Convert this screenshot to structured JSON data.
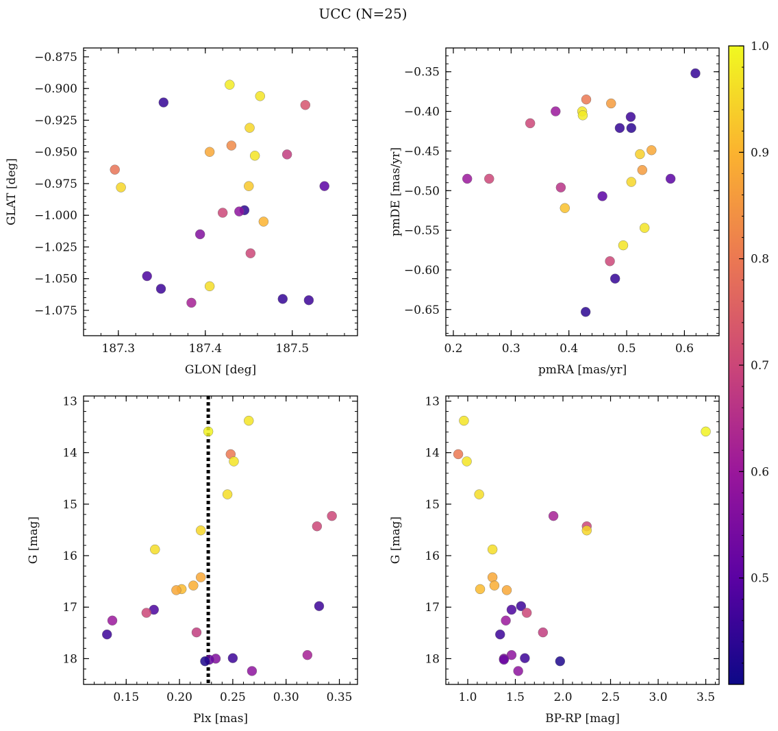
{
  "figure": {
    "title": "UCC (N=25)"
  },
  "colormap": {
    "name": "plasma",
    "stops": [
      "#0d0887",
      "#5b02a3",
      "#9a179b",
      "#cb4678",
      "#eb7852",
      "#fbb32f",
      "#f0f921"
    ],
    "range": [
      0.4,
      1.0
    ],
    "ticks": [
      0.5,
      0.6,
      0.7,
      0.8,
      0.9,
      1.0
    ],
    "tick_labels": [
      "0.5",
      "0.6",
      "0.7",
      "0.8",
      "0.9",
      "1.0"
    ]
  },
  "chart_data": [
    {
      "type": "scatter",
      "xlabel": "GLON [deg]",
      "ylabel": "GLAT [deg]",
      "xlim": [
        187.26,
        187.575
      ],
      "ylim": [
        -1.095,
        -0.868
      ],
      "y_inverted": false,
      "xticks": [
        187.3,
        187.4,
        187.5
      ],
      "xtick_labels": [
        "187.3",
        "187.4",
        "187.5"
      ],
      "yticks": [
        -0.875,
        -0.9,
        -0.925,
        -0.95,
        -0.975,
        -1.0,
        -1.025,
        -1.05,
        -1.075
      ],
      "ytick_labels": [
        "−0.875",
        "−0.900",
        "−0.925",
        "−0.950",
        "−0.975",
        "−1.000",
        "−1.025",
        "−1.050",
        "−1.075"
      ],
      "points": [
        {
          "x": 187.428,
          "y": -0.897,
          "c": 0.98
        },
        {
          "x": 187.463,
          "y": -0.906,
          "c": 0.97
        },
        {
          "x": 187.352,
          "y": -0.911,
          "c": 0.45
        },
        {
          "x": 187.515,
          "y": -0.913,
          "c": 0.73
        },
        {
          "x": 187.451,
          "y": -0.931,
          "c": 0.95
        },
        {
          "x": 187.43,
          "y": -0.945,
          "c": 0.83
        },
        {
          "x": 187.405,
          "y": -0.95,
          "c": 0.88
        },
        {
          "x": 187.457,
          "y": -0.953,
          "c": 0.97
        },
        {
          "x": 187.494,
          "y": -0.952,
          "c": 0.68
        },
        {
          "x": 187.296,
          "y": -0.964,
          "c": 0.79
        },
        {
          "x": 187.303,
          "y": -0.978,
          "c": 0.95
        },
        {
          "x": 187.45,
          "y": -0.977,
          "c": 0.93
        },
        {
          "x": 187.537,
          "y": -0.977,
          "c": 0.5
        },
        {
          "x": 187.445,
          "y": -0.996,
          "c": 0.44
        },
        {
          "x": 187.439,
          "y": -0.997,
          "c": 0.58
        },
        {
          "x": 187.42,
          "y": -0.998,
          "c": 0.7
        },
        {
          "x": 187.467,
          "y": -1.005,
          "c": 0.9
        },
        {
          "x": 187.394,
          "y": -1.015,
          "c": 0.56
        },
        {
          "x": 187.452,
          "y": -1.03,
          "c": 0.7
        },
        {
          "x": 187.333,
          "y": -1.048,
          "c": 0.48
        },
        {
          "x": 187.405,
          "y": -1.056,
          "c": 0.96
        },
        {
          "x": 187.349,
          "y": -1.058,
          "c": 0.46
        },
        {
          "x": 187.489,
          "y": -1.066,
          "c": 0.45
        },
        {
          "x": 187.519,
          "y": -1.067,
          "c": 0.46
        },
        {
          "x": 187.384,
          "y": -1.069,
          "c": 0.62
        }
      ]
    },
    {
      "type": "scatter",
      "xlabel": "pmRA [mas/yr]",
      "ylabel": "pmDE [mas/yr]",
      "xlim": [
        0.187,
        0.66
      ],
      "ylim": [
        -0.683,
        -0.32
      ],
      "y_inverted": false,
      "xticks": [
        0.2,
        0.3,
        0.4,
        0.5,
        0.6
      ],
      "xtick_labels": [
        "0.2",
        "0.3",
        "0.4",
        "0.5",
        "0.6"
      ],
      "yticks": [
        -0.35,
        -0.4,
        -0.45,
        -0.5,
        -0.55,
        -0.6,
        -0.65
      ],
      "ytick_labels": [
        "−0.35",
        "−0.40",
        "−0.45",
        "−0.50",
        "−0.55",
        "−0.60",
        "−0.65"
      ],
      "points": [
        {
          "x": 0.619,
          "y": -0.352,
          "c": 0.45
        },
        {
          "x": 0.43,
          "y": -0.385,
          "c": 0.8
        },
        {
          "x": 0.473,
          "y": -0.39,
          "c": 0.86
        },
        {
          "x": 0.377,
          "y": -0.4,
          "c": 0.6
        },
        {
          "x": 0.423,
          "y": -0.4,
          "c": 0.97
        },
        {
          "x": 0.424,
          "y": -0.405,
          "c": 0.98
        },
        {
          "x": 0.507,
          "y": -0.407,
          "c": 0.46
        },
        {
          "x": 0.333,
          "y": -0.415,
          "c": 0.7
        },
        {
          "x": 0.488,
          "y": -0.421,
          "c": 0.45
        },
        {
          "x": 0.508,
          "y": -0.421,
          "c": 0.44
        },
        {
          "x": 0.543,
          "y": -0.449,
          "c": 0.88
        },
        {
          "x": 0.523,
          "y": -0.454,
          "c": 0.94
        },
        {
          "x": 0.527,
          "y": -0.474,
          "c": 0.86
        },
        {
          "x": 0.224,
          "y": -0.485,
          "c": 0.6
        },
        {
          "x": 0.262,
          "y": -0.485,
          "c": 0.7
        },
        {
          "x": 0.576,
          "y": -0.485,
          "c": 0.5
        },
        {
          "x": 0.508,
          "y": -0.489,
          "c": 0.95
        },
        {
          "x": 0.386,
          "y": -0.496,
          "c": 0.66
        },
        {
          "x": 0.458,
          "y": -0.507,
          "c": 0.5
        },
        {
          "x": 0.393,
          "y": -0.522,
          "c": 0.92
        },
        {
          "x": 0.531,
          "y": -0.547,
          "c": 0.97
        },
        {
          "x": 0.494,
          "y": -0.569,
          "c": 0.97
        },
        {
          "x": 0.471,
          "y": -0.589,
          "c": 0.7
        },
        {
          "x": 0.48,
          "y": -0.611,
          "c": 0.45
        },
        {
          "x": 0.429,
          "y": -0.653,
          "c": 0.44
        }
      ]
    },
    {
      "type": "scatter",
      "xlabel": "Plx [mas]",
      "ylabel": "G [mag]",
      "xlim": [
        0.11,
        0.367
      ],
      "ylim": [
        18.5,
        12.9
      ],
      "y_inverted": true,
      "xticks": [
        0.15,
        0.2,
        0.25,
        0.3,
        0.35
      ],
      "xtick_labels": [
        "0.15",
        "0.20",
        "0.25",
        "0.30",
        "0.35"
      ],
      "yticks": [
        13,
        14,
        15,
        16,
        17,
        18
      ],
      "ytick_labels": [
        "13",
        "14",
        "15",
        "16",
        "17",
        "18"
      ],
      "vline": {
        "x": 0.227,
        "style": "dotted"
      },
      "points": [
        {
          "x": 0.265,
          "y": 13.38,
          "c": 0.97
        },
        {
          "x": 0.227,
          "y": 13.59,
          "c": 0.99
        },
        {
          "x": 0.248,
          "y": 14.03,
          "c": 0.8
        },
        {
          "x": 0.251,
          "y": 14.17,
          "c": 0.97
        },
        {
          "x": 0.245,
          "y": 14.81,
          "c": 0.96
        },
        {
          "x": 0.343,
          "y": 15.23,
          "c": 0.7
        },
        {
          "x": 0.329,
          "y": 15.43,
          "c": 0.7
        },
        {
          "x": 0.22,
          "y": 15.51,
          "c": 0.95
        },
        {
          "x": 0.177,
          "y": 15.88,
          "c": 0.96
        },
        {
          "x": 0.22,
          "y": 16.42,
          "c": 0.88
        },
        {
          "x": 0.213,
          "y": 16.58,
          "c": 0.89
        },
        {
          "x": 0.202,
          "y": 16.65,
          "c": 0.91
        },
        {
          "x": 0.197,
          "y": 16.67,
          "c": 0.88
        },
        {
          "x": 0.331,
          "y": 16.98,
          "c": 0.46
        },
        {
          "x": 0.176,
          "y": 17.05,
          "c": 0.48
        },
        {
          "x": 0.169,
          "y": 17.11,
          "c": 0.7
        },
        {
          "x": 0.137,
          "y": 17.26,
          "c": 0.6
        },
        {
          "x": 0.216,
          "y": 17.49,
          "c": 0.68
        },
        {
          "x": 0.132,
          "y": 17.53,
          "c": 0.46
        },
        {
          "x": 0.32,
          "y": 17.93,
          "c": 0.62
        },
        {
          "x": 0.25,
          "y": 17.99,
          "c": 0.46
        },
        {
          "x": 0.234,
          "y": 18.0,
          "c": 0.56
        },
        {
          "x": 0.228,
          "y": 18.02,
          "c": 0.52
        },
        {
          "x": 0.224,
          "y": 18.05,
          "c": 0.42
        },
        {
          "x": 0.268,
          "y": 18.24,
          "c": 0.58
        }
      ]
    },
    {
      "type": "scatter",
      "xlabel": "BP-RP [mag]",
      "ylabel": "G [mag]",
      "xlim": [
        0.77,
        3.64
      ],
      "ylim": [
        18.5,
        12.9
      ],
      "y_inverted": true,
      "xticks": [
        1.0,
        1.5,
        2.0,
        2.5,
        3.0,
        3.5
      ],
      "xtick_labels": [
        "1.0",
        "1.5",
        "2.0",
        "2.5",
        "3.0",
        "3.5"
      ],
      "yticks": [
        13,
        14,
        15,
        16,
        17,
        18
      ],
      "ytick_labels": [
        "13",
        "14",
        "15",
        "16",
        "17",
        "18"
      ],
      "points": [
        {
          "x": 0.96,
          "y": 13.38,
          "c": 0.97
        },
        {
          "x": 3.5,
          "y": 13.59,
          "c": 0.99
        },
        {
          "x": 0.9,
          "y": 14.03,
          "c": 0.8
        },
        {
          "x": 0.99,
          "y": 14.17,
          "c": 0.97
        },
        {
          "x": 1.12,
          "y": 14.81,
          "c": 0.96
        },
        {
          "x": 1.9,
          "y": 15.23,
          "c": 0.62
        },
        {
          "x": 2.25,
          "y": 15.43,
          "c": 0.7
        },
        {
          "x": 2.25,
          "y": 15.51,
          "c": 0.95
        },
        {
          "x": 1.26,
          "y": 15.88,
          "c": 0.96
        },
        {
          "x": 1.26,
          "y": 16.42,
          "c": 0.88
        },
        {
          "x": 1.28,
          "y": 16.58,
          "c": 0.89
        },
        {
          "x": 1.13,
          "y": 16.65,
          "c": 0.91
        },
        {
          "x": 1.41,
          "y": 16.67,
          "c": 0.88
        },
        {
          "x": 1.56,
          "y": 16.98,
          "c": 0.46
        },
        {
          "x": 1.46,
          "y": 17.05,
          "c": 0.48
        },
        {
          "x": 1.62,
          "y": 17.11,
          "c": 0.7
        },
        {
          "x": 1.4,
          "y": 17.26,
          "c": 0.6
        },
        {
          "x": 1.79,
          "y": 17.49,
          "c": 0.68
        },
        {
          "x": 1.34,
          "y": 17.53,
          "c": 0.46
        },
        {
          "x": 1.46,
          "y": 17.93,
          "c": 0.58
        },
        {
          "x": 1.6,
          "y": 17.99,
          "c": 0.46
        },
        {
          "x": 1.38,
          "y": 18.0,
          "c": 0.56
        },
        {
          "x": 1.38,
          "y": 18.02,
          "c": 0.52
        },
        {
          "x": 1.97,
          "y": 18.05,
          "c": 0.42
        },
        {
          "x": 1.53,
          "y": 18.24,
          "c": 0.58
        }
      ]
    }
  ]
}
